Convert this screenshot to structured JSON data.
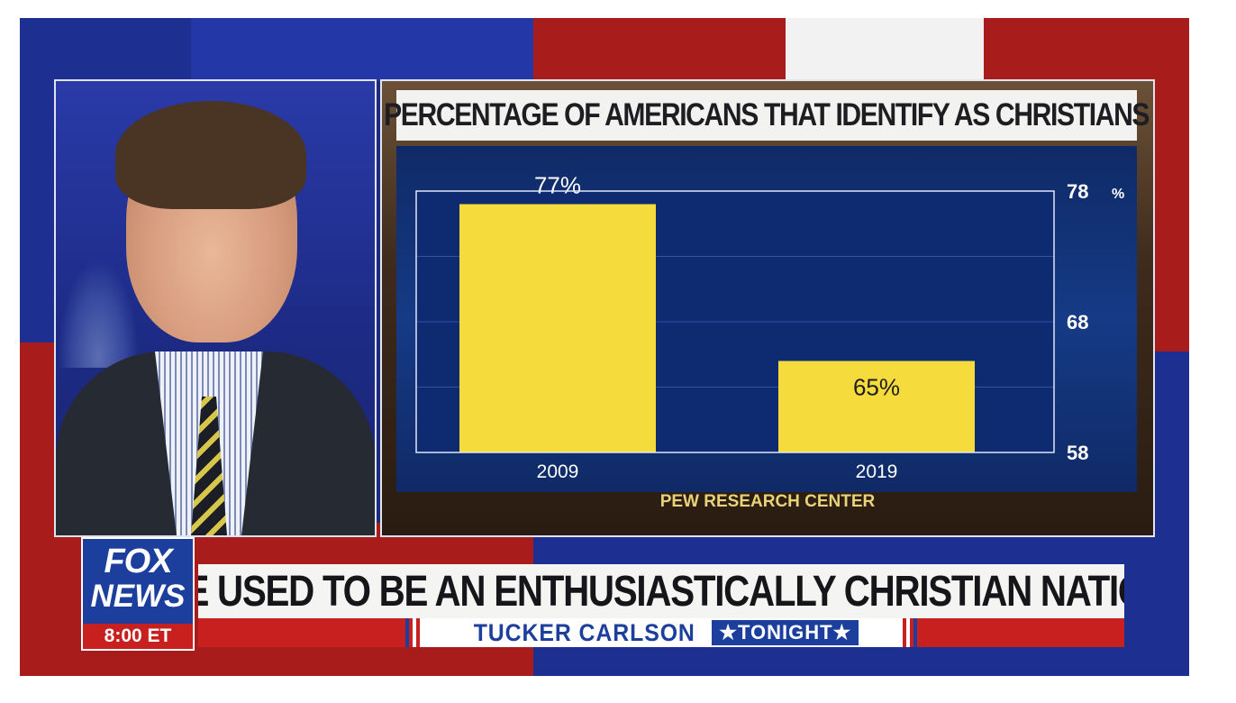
{
  "chart_data": {
    "type": "bar",
    "title": "PERCENTAGE OF AMERICANS THAT IDENTIFY AS CHRISTIANS",
    "categories": [
      "2009",
      "2019"
    ],
    "values": [
      77,
      65
    ],
    "data_labels": [
      "77%",
      "65%"
    ],
    "ylim": [
      58,
      78
    ],
    "yticks": [
      "78",
      "68",
      "58"
    ],
    "yunit": "%",
    "source": "PEW RESEARCH CENTER",
    "grid": true,
    "colors": {
      "bar": "#f5dc3c",
      "background": "#163a86",
      "text": "#ffffff"
    }
  },
  "lower_third": {
    "network_logo": {
      "line1": "FOX",
      "line2": "NEWS",
      "time": "8:00 ET"
    },
    "headline": "WE USED TO BE AN ENTHUSIASTICALLY CHRISTIAN NATION",
    "show_name": "TUCKER CARLSON",
    "show_tag": "★TONIGHT★"
  },
  "colors": {
    "fox_blue": "#1c3f9e",
    "fox_red": "#c8201e",
    "headline_bg": "#f4f4f2"
  }
}
